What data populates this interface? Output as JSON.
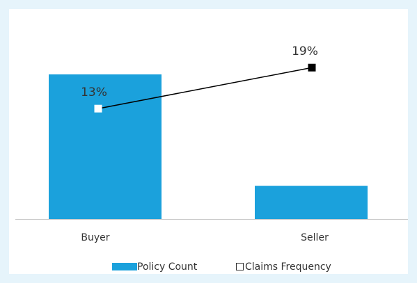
{
  "chart_data": {
    "type": "bar",
    "categories": [
      "Buyer",
      "Seller"
    ],
    "series": [
      {
        "name": "Policy Count",
        "type": "bar",
        "color": "#1ba1dc",
        "values": [
          100,
          23
        ]
      },
      {
        "name": "Claims Frequency",
        "type": "line",
        "color": "#000000",
        "values": [
          13,
          19
        ],
        "data_labels": [
          "13%",
          "19%"
        ],
        "marker_colors": [
          "#ffffff",
          "#000000"
        ]
      }
    ],
    "title": "",
    "xlabel": "",
    "ylabel": "",
    "legend_position": "bottom",
    "grid": false
  }
}
